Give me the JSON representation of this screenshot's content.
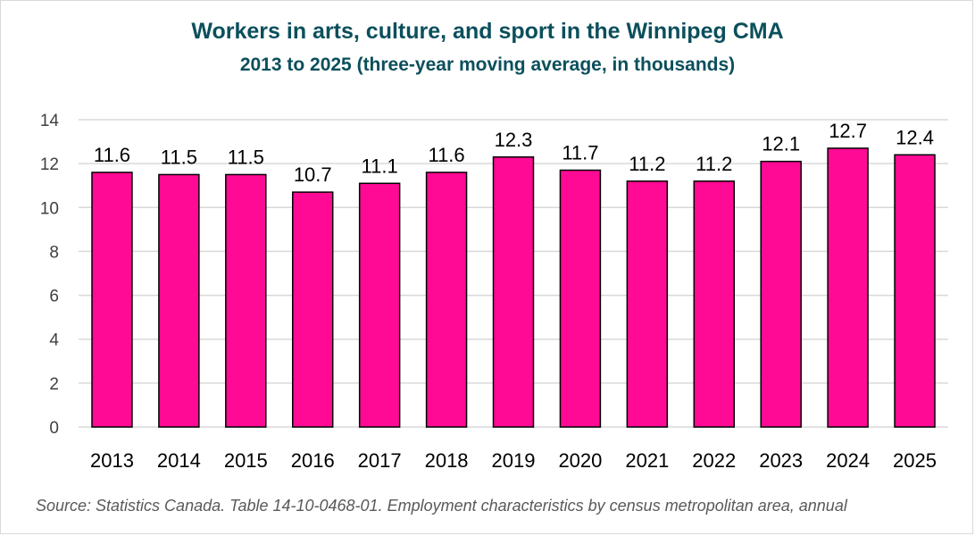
{
  "chart_data": {
    "type": "bar",
    "title": "Workers in arts, culture, and sport in the Winnipeg CMA",
    "subtitle": "2013 to 2025 (three-year moving average, in thousands)",
    "categories": [
      "2013",
      "2014",
      "2015",
      "2016",
      "2017",
      "2018",
      "2019",
      "2020",
      "2021",
      "2022",
      "2023",
      "2024",
      "2025"
    ],
    "values": [
      11.6,
      11.5,
      11.5,
      10.7,
      11.1,
      11.6,
      12.3,
      11.7,
      11.2,
      11.2,
      12.1,
      12.7,
      12.4
    ],
    "data_labels": [
      "11.6",
      "11.5",
      "11.5",
      "10.7",
      "11.1",
      "11.6",
      "12.3",
      "11.7",
      "11.2",
      "11.2",
      "12.1",
      "12.7",
      "12.4"
    ],
    "yticks": [
      "0",
      "2",
      "4",
      "6",
      "8",
      "10",
      "12",
      "14"
    ],
    "ylim": [
      0,
      14
    ],
    "grid": true,
    "legend": "none",
    "bar_color": "#ff0a94",
    "bar_edge_color": "#000000",
    "grid_color": "#d9d9d9",
    "title_color": "#0b4f5c"
  },
  "source": "Source: Statistics Canada. Table 14-10-0468-01. Employment characteristics by census metropolitan area, annual"
}
